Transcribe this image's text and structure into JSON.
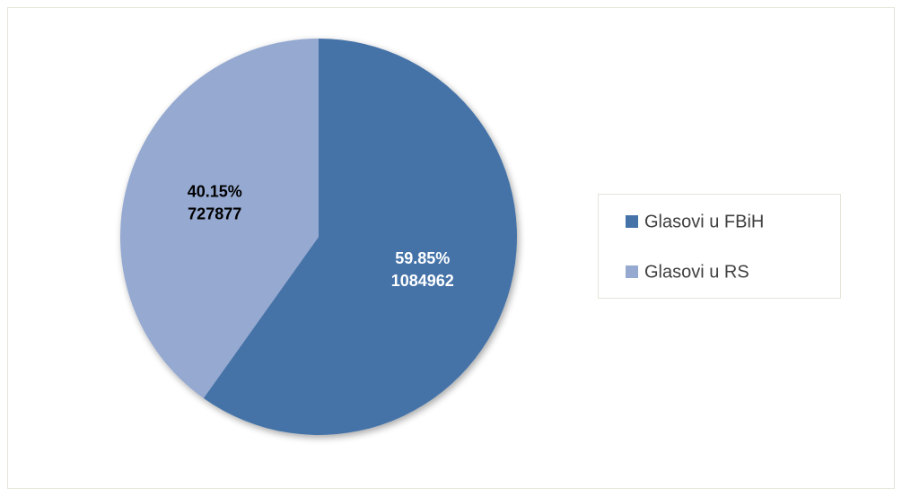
{
  "chart_data": {
    "type": "pie",
    "categories": [
      "Glasovi u FBiH",
      "Glasovi u RS"
    ],
    "values": [
      59.85,
      40.15
    ],
    "value_labels": [
      "59.85%",
      "40.15%"
    ],
    "counts": [
      1084962,
      727877
    ],
    "colors": [
      "#4573a8",
      "#95a9d1"
    ],
    "label_colors": [
      "#ffffff",
      "#000000"
    ],
    "legend": "right"
  }
}
